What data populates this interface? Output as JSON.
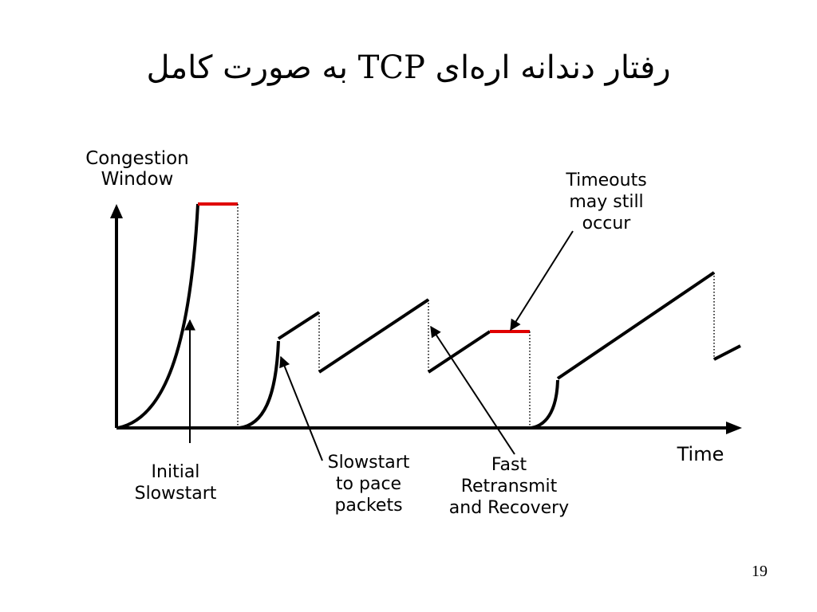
{
  "slide": {
    "title": "رفتار دندانه اره‌ای TCP به صورت کامل",
    "page_number": "19"
  },
  "diagram": {
    "y_axis_label": "Congestion\nWindow",
    "x_axis_label": "Time",
    "annotations": {
      "initial_slowstart": "Initial\nSlowstart",
      "slowstart_pace": "Slowstart\nto pace\npackets",
      "fast_retransmit": "Fast\nRetransmit\nand Recovery",
      "timeouts": "Timeouts\nmay still\noccur"
    },
    "colors": {
      "line": "#000000",
      "timeout_plateau": "#e00000",
      "background": "#ffffff"
    }
  }
}
